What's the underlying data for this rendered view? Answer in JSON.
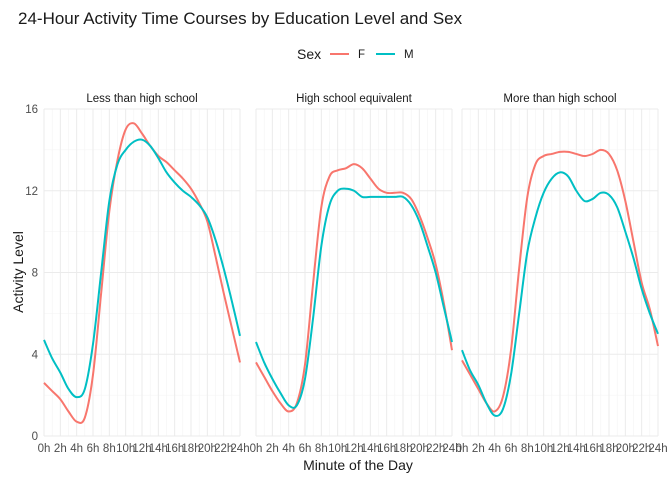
{
  "chart_data": {
    "type": "line",
    "title": "24-Hour Activity Time Courses by Education Level and Sex",
    "xlabel": "Minute of the Day",
    "ylabel": "Activity Level",
    "x_tick_labels": [
      "0h",
      "2h",
      "4h",
      "6h",
      "8h",
      "10h",
      "12h",
      "14h",
      "16h",
      "18h",
      "20h",
      "22h",
      "24h"
    ],
    "x_ticks_hours": [
      0,
      2,
      4,
      6,
      8,
      10,
      12,
      14,
      16,
      18,
      20,
      22,
      24
    ],
    "xlim_hours": [
      0,
      24
    ],
    "y_ticks": [
      0,
      4,
      8,
      12,
      16
    ],
    "ylim": [
      0,
      16
    ],
    "grid": true,
    "legend": {
      "title": "Sex",
      "position": "top",
      "entries": [
        {
          "name": "F",
          "color": "#F8766D"
        },
        {
          "name": "M",
          "color": "#00BFC4"
        }
      ]
    },
    "x_hours": [
      0,
      1,
      2,
      3,
      4,
      5,
      6,
      7,
      8,
      9,
      10,
      11,
      12,
      13,
      14,
      15,
      16,
      17,
      18,
      19,
      20,
      21,
      22,
      23,
      24
    ],
    "panels": [
      {
        "label": "Less than high school",
        "series": [
          {
            "name": "F",
            "values": [
              2.6,
              2.2,
              1.8,
              1.2,
              0.7,
              0.9,
              3.0,
              7.0,
              11.0,
              13.5,
              15.0,
              15.3,
              14.8,
              14.2,
              13.7,
              13.4,
              13.0,
              12.6,
              12.1,
              11.4,
              10.5,
              8.8,
              7.0,
              5.3,
              3.6
            ]
          },
          {
            "name": "M",
            "values": [
              4.7,
              3.8,
              3.1,
              2.3,
              1.9,
              2.3,
              4.5,
              8.0,
              11.5,
              13.3,
              14.0,
              14.4,
              14.5,
              14.2,
              13.6,
              12.9,
              12.4,
              12.0,
              11.7,
              11.3,
              10.7,
              9.6,
              8.2,
              6.6,
              4.9
            ]
          }
        ]
      },
      {
        "label": "High school equivalent",
        "series": [
          {
            "name": "F",
            "values": [
              3.6,
              2.9,
              2.2,
              1.6,
              1.2,
              1.6,
              3.5,
              7.5,
              11.2,
              12.7,
              13.0,
              13.1,
              13.3,
              13.1,
              12.6,
              12.1,
              11.9,
              11.9,
              11.9,
              11.6,
              10.8,
              9.7,
              8.4,
              6.5,
              4.2
            ]
          },
          {
            "name": "M",
            "values": [
              4.6,
              3.6,
              2.8,
              2.1,
              1.5,
              1.5,
              2.8,
              5.8,
              9.3,
              11.3,
              12.0,
              12.1,
              12.0,
              11.7,
              11.7,
              11.7,
              11.7,
              11.7,
              11.7,
              11.3,
              10.5,
              9.3,
              8.0,
              6.3,
              4.6
            ]
          }
        ]
      },
      {
        "label": "More than high school",
        "series": [
          {
            "name": "F",
            "values": [
              3.7,
              3.0,
              2.3,
              1.6,
              1.2,
              1.9,
              4.2,
              8.2,
              11.7,
              13.3,
              13.7,
              13.8,
              13.9,
              13.9,
              13.8,
              13.7,
              13.8,
              14.0,
              13.8,
              13.0,
              11.5,
              9.5,
              7.5,
              6.2,
              4.4
            ]
          },
          {
            "name": "M",
            "values": [
              4.2,
              3.2,
              2.5,
              1.6,
              1.0,
              1.3,
              3.0,
              6.0,
              9.0,
              10.7,
              11.9,
              12.6,
              12.9,
              12.7,
              12.0,
              11.5,
              11.6,
              11.9,
              11.8,
              11.2,
              10.0,
              8.7,
              7.2,
              6.0,
              5.0
            ]
          }
        ]
      }
    ]
  }
}
